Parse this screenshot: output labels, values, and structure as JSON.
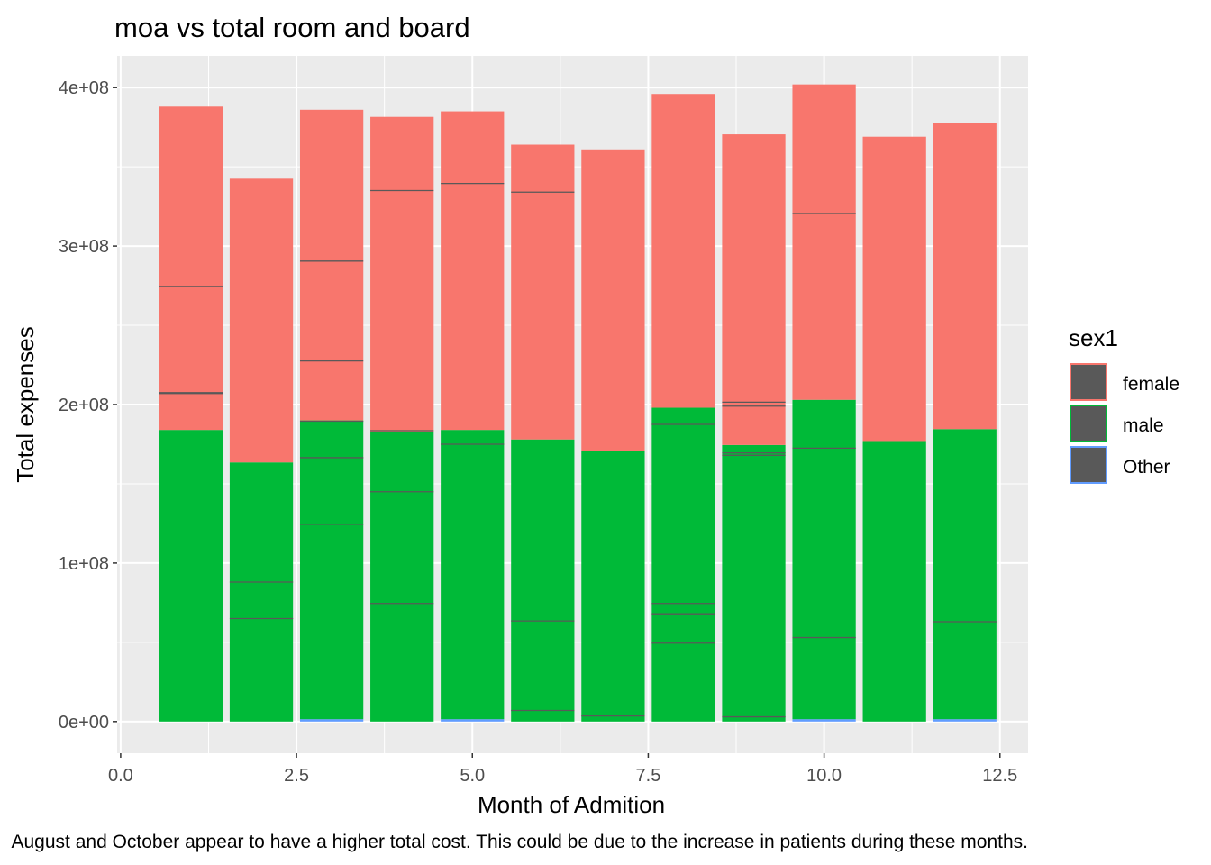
{
  "chart_data": {
    "type": "bar",
    "stacked": true,
    "title": "moa vs total room and board",
    "xlabel": "Month of Admition",
    "ylabel": "Total expenses",
    "caption": "August and October appear to have a higher total cost. This could be due to the increase in patients during these months.",
    "x": [
      1,
      2,
      3,
      4,
      5,
      6,
      7,
      8,
      9,
      10,
      11,
      12
    ],
    "xlim": [
      -0.05,
      12.9
    ],
    "ylim": [
      -20000000,
      420000000
    ],
    "x_ticks": [
      0,
      2.5,
      5,
      7.5,
      10,
      12.5
    ],
    "x_tick_labels": [
      "0.0",
      "2.5",
      "5.0",
      "7.5",
      "10.0",
      "12.5"
    ],
    "y_ticks": [
      0,
      100000000,
      200000000,
      300000000,
      400000000
    ],
    "y_tick_labels": [
      "0e+00",
      "1e+08",
      "2e+08",
      "3e+08",
      "4e+08"
    ],
    "grid": true,
    "legend": {
      "title": "sex1",
      "position": "right"
    },
    "series": [
      {
        "name": "Other",
        "color": "#619CFF",
        "values": [
          0,
          0,
          1500000,
          0,
          1500000,
          0,
          0,
          0,
          0,
          1500000,
          0,
          1500000
        ]
      },
      {
        "name": "male",
        "color": "#00BA38",
        "values": [
          184000000,
          163500000,
          188500000,
          182500000,
          182500000,
          178000000,
          171000000,
          198000000,
          174500000,
          201500000,
          177000000,
          183000000
        ]
      },
      {
        "name": "female",
        "color": "#F8766D",
        "values": [
          204000000,
          179000000,
          196000000,
          199000000,
          201000000,
          186000000,
          190000000,
          198000000,
          196000000,
          199000000,
          192000000,
          193000000
        ]
      }
    ],
    "segment_edges": [
      [
        207000000,
        207500000,
        274500000
      ],
      [
        65000000,
        88000000
      ],
      [
        124500000,
        166500000,
        189500000,
        227500000,
        290500000
      ],
      [
        74500000,
        145000000,
        183500000,
        335000000
      ],
      [
        175000000,
        339500000
      ],
      [
        7000000,
        63500000,
        334000000
      ],
      [
        3500000
      ],
      [
        49500000,
        68000000,
        74500000,
        187500000
      ],
      [
        3000000,
        168000000,
        169500000,
        199000000,
        201500000
      ],
      [
        53000000,
        172500000,
        320500000
      ],
      [],
      [
        63000000
      ]
    ],
    "legend_order": [
      "female",
      "male",
      "Other"
    ]
  }
}
